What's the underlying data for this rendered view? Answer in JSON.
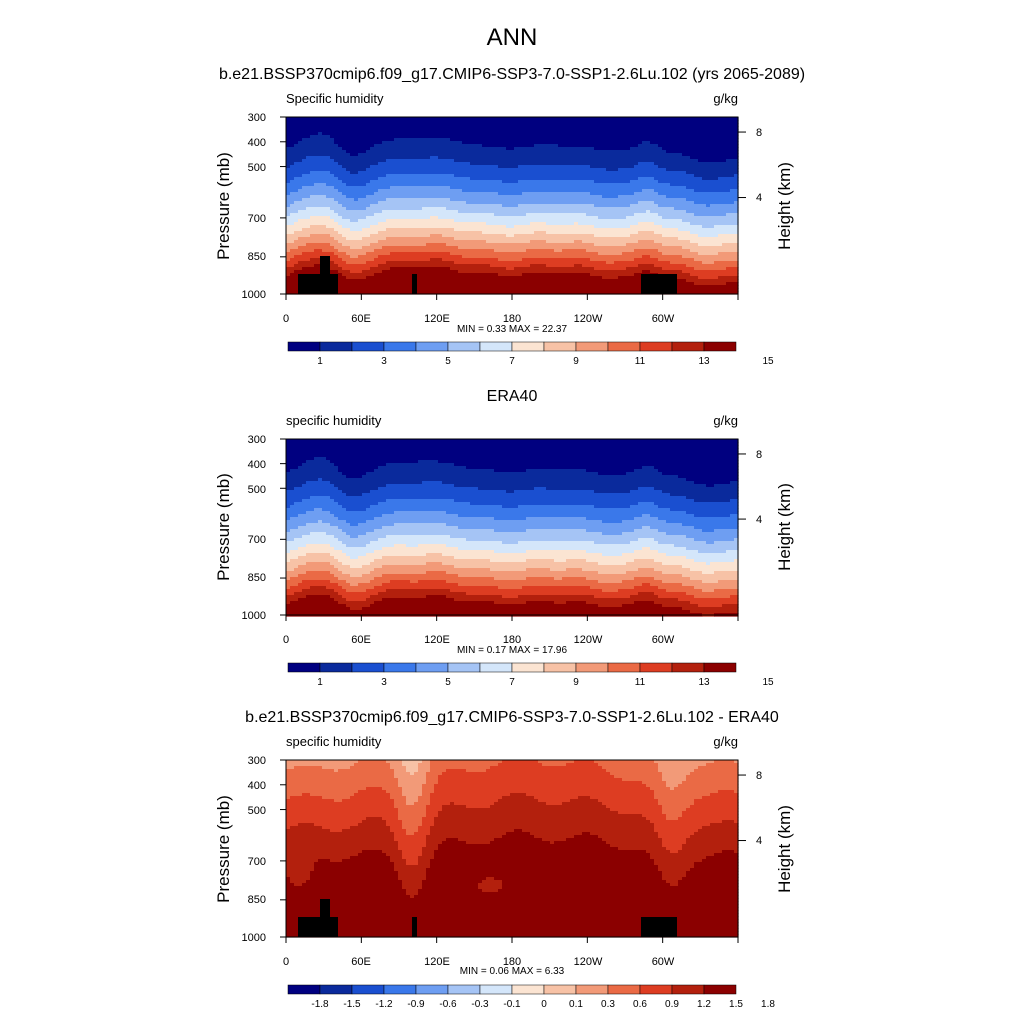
{
  "page_title": "ANN",
  "colors": {
    "seq": [
      "#000080",
      "#0a2a9c",
      "#1a4fd0",
      "#3a78ea",
      "#6e9ef2",
      "#a5c4f5",
      "#d4e6fa",
      "#fbe4d2",
      "#f7c2a6",
      "#f29a78",
      "#ea6a45",
      "#dd3d22",
      "#b3200d",
      "#8b0000"
    ],
    "diff": [
      "#000080",
      "#0a2a9c",
      "#1a4fd0",
      "#3a78ea",
      "#6e9ef2",
      "#a5c4f5",
      "#d4e6fa",
      "#fbe4d2",
      "#f7c2a6",
      "#f29a78",
      "#ea6a45",
      "#dd3d22",
      "#b3200d",
      "#8b0000"
    ],
    "topo": "#000000"
  },
  "chart_data": [
    {
      "type": "heatmap",
      "title": "b.e21.BSSP370cmip6.f09_g17.CMIP6-SSP3-7.0-SSP1-2.6Lu.102 (yrs 2065-2089)",
      "left_label": "Specific humidity",
      "right_label": "g/kg",
      "ylabel": "Pressure (mb)",
      "y2label": "Height (km)",
      "yticks": [
        "300",
        "400",
        "500",
        "700",
        "850",
        "1000"
      ],
      "y2ticks": [
        "8",
        "4"
      ],
      "xticks": [
        "0",
        "60E",
        "120E",
        "180",
        "120W",
        "60W"
      ],
      "stats": "MIN =   0.33  MAX =  22.37",
      "colorbar_labels": [
        "1",
        "3",
        "5",
        "7",
        "9",
        "11",
        "13",
        "15"
      ],
      "palette": "seq",
      "field": "model",
      "show_topography": true
    },
    {
      "type": "heatmap",
      "title": "ERA40",
      "left_label": "specific humidity",
      "right_label": "g/kg",
      "ylabel": "Pressure (mb)",
      "y2label": "Height (km)",
      "yticks": [
        "300",
        "400",
        "500",
        "700",
        "850",
        "1000"
      ],
      "y2ticks": [
        "8",
        "4"
      ],
      "xticks": [
        "0",
        "60E",
        "120E",
        "180",
        "120W",
        "60W"
      ],
      "stats": "MIN =   0.17  MAX =  17.96",
      "colorbar_labels": [
        "1",
        "3",
        "5",
        "7",
        "9",
        "11",
        "13",
        "15"
      ],
      "palette": "seq",
      "field": "obs",
      "show_topography": false
    },
    {
      "type": "heatmap",
      "title": "b.e21.BSSP370cmip6.f09_g17.CMIP6-SSP3-7.0-SSP1-2.6Lu.102 - ERA40",
      "left_label": "specific humidity",
      "right_label": "g/kg",
      "ylabel": "Pressure (mb)",
      "y2label": "Height (km)",
      "yticks": [
        "300",
        "400",
        "500",
        "700",
        "850",
        "1000"
      ],
      "y2ticks": [
        "8",
        "4"
      ],
      "xticks": [
        "0",
        "60E",
        "120E",
        "180",
        "120W",
        "60W"
      ],
      "stats": "MIN =   0.06  MAX =   6.33",
      "colorbar_labels": [
        "-1.8",
        "-1.5",
        "-1.2",
        "-0.9",
        "-0.6",
        "-0.3",
        "-0.1",
        "0",
        "0.1",
        "0.3",
        "0.6",
        "0.9",
        "1.2",
        "1.5",
        "1.8"
      ],
      "palette": "diff",
      "field": "diff",
      "show_topography": true
    }
  ]
}
